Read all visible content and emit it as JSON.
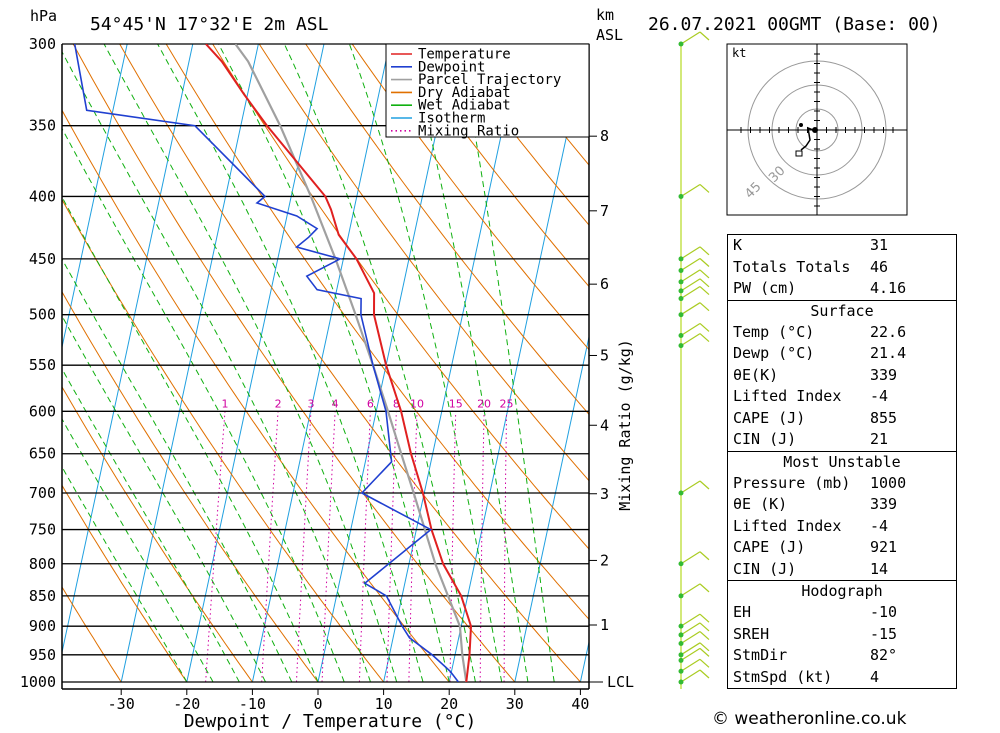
{
  "header": {
    "location": "54°45'N 17°32'E 2m ASL",
    "datetime": "26.07.2021 00GMT (Base: 00)",
    "hpa_unit": "hPa",
    "km_unit": "km",
    "asl_unit": "ASL",
    "wind_unit": "kt"
  },
  "legend": {
    "items": [
      {
        "label": "Temperature",
        "color": "#e02020",
        "dash": "solid"
      },
      {
        "label": "Dewpoint",
        "color": "#2040d0",
        "dash": "solid"
      },
      {
        "label": "Parcel Trajectory",
        "color": "#a0a0a0",
        "dash": "solid"
      },
      {
        "label": "Dry Adiabat",
        "color": "#e07000",
        "dash": "solid"
      },
      {
        "label": "Wet Adiabat",
        "color": "#10b010",
        "dash": "solid"
      },
      {
        "label": "Isotherm",
        "color": "#20a0e0",
        "dash": "solid"
      },
      {
        "label": "Mixing Ratio",
        "color": "#d000a0",
        "dash": "dotted"
      }
    ]
  },
  "chart_data": {
    "type": "skew-t",
    "xlabel": "Dewpoint / Temperature (°C)",
    "ylabel_right": "Mixing Ratio (g/kg)",
    "x_ticks": [
      -30,
      -20,
      -10,
      0,
      10,
      20,
      30,
      40
    ],
    "pressure_levels": [
      300,
      350,
      400,
      450,
      500,
      550,
      600,
      650,
      700,
      750,
      800,
      850,
      900,
      950,
      1000
    ],
    "height_km_ticks": [
      1,
      2,
      3,
      4,
      5,
      6,
      7,
      8
    ],
    "height_km_pressures": [
      898,
      795,
      701,
      616,
      540,
      472,
      411,
      357
    ],
    "lcl_label": "LCL",
    "lcl_pressure": 1000,
    "mixing_ratio_labels": [
      "1",
      "2",
      "3",
      "4",
      "6",
      "8",
      "10",
      "15",
      "20",
      "25"
    ],
    "mixing_ratio_values": [
      1,
      2,
      3,
      4,
      6,
      8,
      10,
      15,
      20,
      25
    ],
    "temperature": [
      [
        1000,
        22.6
      ],
      [
        950,
        22.2
      ],
      [
        900,
        21.5
      ],
      [
        850,
        19.0
      ],
      [
        800,
        15.2
      ],
      [
        750,
        12.3
      ],
      [
        700,
        9.8
      ],
      [
        650,
        6.7
      ],
      [
        600,
        3.8
      ],
      [
        550,
        0.0
      ],
      [
        500,
        -3.5
      ],
      [
        480,
        -4.2
      ],
      [
        450,
        -8.0
      ],
      [
        430,
        -11.5
      ],
      [
        410,
        -13.5
      ],
      [
        400,
        -14.8
      ],
      [
        350,
        -26.0
      ],
      [
        330,
        -30.5
      ],
      [
        310,
        -35.0
      ],
      [
        300,
        -38.0
      ]
    ],
    "dewpoint": [
      [
        1000,
        21.4
      ],
      [
        980,
        19.8
      ],
      [
        950,
        16.5
      ],
      [
        920,
        12.5
      ],
      [
        900,
        11.0
      ],
      [
        850,
        7.6
      ],
      [
        830,
        3.9
      ],
      [
        750,
        12.2
      ],
      [
        700,
        0.5
      ],
      [
        660,
        4.0
      ],
      [
        600,
        1.5
      ],
      [
        550,
        -2.0
      ],
      [
        500,
        -5.5
      ],
      [
        485,
        -6.0
      ],
      [
        477,
        -13.0
      ],
      [
        465,
        -15.0
      ],
      [
        450,
        -10.5
      ],
      [
        440,
        -17.5
      ],
      [
        432,
        -16.0
      ],
      [
        425,
        -15.0
      ],
      [
        415,
        -18.5
      ],
      [
        405,
        -25.0
      ],
      [
        400,
        -24.0
      ],
      [
        350,
        -37.0
      ],
      [
        340,
        -54.0
      ],
      [
        300,
        -58.0
      ]
    ],
    "parcel": [
      [
        1000,
        22.6
      ],
      [
        950,
        21.1
      ],
      [
        900,
        19.8
      ],
      [
        850,
        17.0
      ],
      [
        800,
        14.0
      ],
      [
        750,
        11.3
      ],
      [
        700,
        8.4
      ],
      [
        650,
        5.2
      ],
      [
        600,
        1.8
      ],
      [
        550,
        -2.0
      ],
      [
        500,
        -6.3
      ],
      [
        450,
        -11.2
      ],
      [
        400,
        -17.0
      ],
      [
        350,
        -24.0
      ],
      [
        310,
        -31.0
      ],
      [
        300,
        -33.5
      ]
    ],
    "wind_barb_pressures": [
      300,
      400,
      450,
      460,
      470,
      478,
      485,
      500,
      520,
      530,
      700,
      800,
      850,
      900,
      915,
      930,
      950,
      960,
      980,
      1000
    ]
  },
  "hodograph": {
    "unit": "kt",
    "ring_labels": [
      "30",
      "45"
    ]
  },
  "indices": {
    "top": [
      {
        "label": "K",
        "value": "31"
      },
      {
        "label": "Totals Totals",
        "value": "46"
      },
      {
        "label": "PW (cm)",
        "value": "4.16"
      }
    ],
    "surface_title": "Surface",
    "surface": [
      {
        "label": "Temp (°C)",
        "value": "22.6"
      },
      {
        "label": "Dewp (°C)",
        "value": "21.4"
      },
      {
        "label": "θE(K)",
        "value": "339"
      },
      {
        "label": "Lifted Index",
        "value": "-4"
      },
      {
        "label": "CAPE (J)",
        "value": "855"
      },
      {
        "label": "CIN (J)",
        "value": "21"
      }
    ],
    "unstable_title": "Most Unstable",
    "unstable": [
      {
        "label": "Pressure (mb)",
        "value": "1000"
      },
      {
        "label": "θE (K)",
        "value": "339"
      },
      {
        "label": "Lifted Index",
        "value": "-4"
      },
      {
        "label": "CAPE (J)",
        "value": "921"
      },
      {
        "label": "CIN (J)",
        "value": "14"
      }
    ],
    "hodograph_title": "Hodograph",
    "hodo": [
      {
        "label": "EH",
        "value": "-10"
      },
      {
        "label": "SREH",
        "value": "-15"
      },
      {
        "label": "StmDir",
        "value": "82°"
      },
      {
        "label": "StmSpd (kt)",
        "value": "4"
      }
    ]
  },
  "credit": "© weatheronline.co.uk"
}
